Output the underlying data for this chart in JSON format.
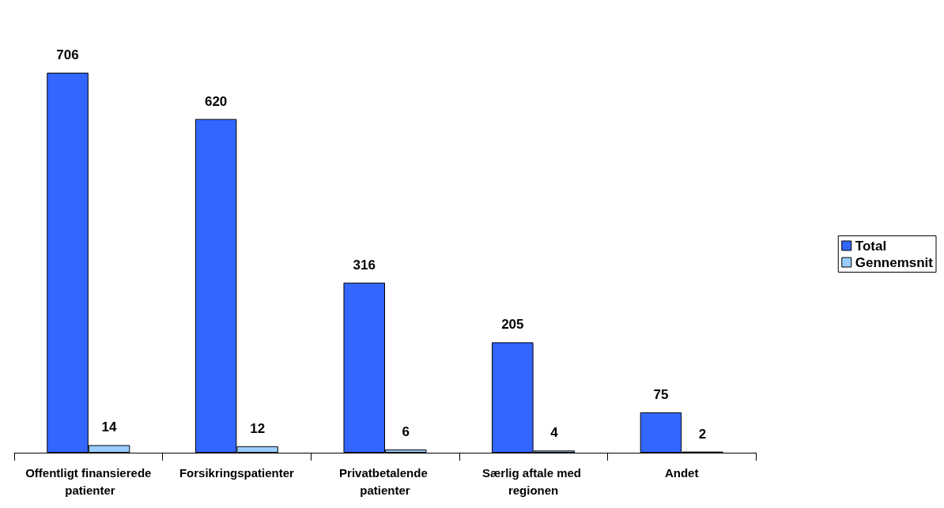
{
  "chart_data": {
    "type": "bar",
    "categories": [
      "Offentligt finansierede patienter",
      "Forsikringspatienter",
      "Privatbetalende patienter",
      "Særlig aftale med regionen",
      "Andet"
    ],
    "series": [
      {
        "name": "Total",
        "color": "#3366ff",
        "values": [
          706,
          620,
          316,
          205,
          75
        ]
      },
      {
        "name": "Gennemsnit",
        "color": "#99ccff",
        "values": [
          14,
          12,
          6,
          4,
          2
        ]
      }
    ],
    "data_labels": true,
    "legend": "right"
  }
}
